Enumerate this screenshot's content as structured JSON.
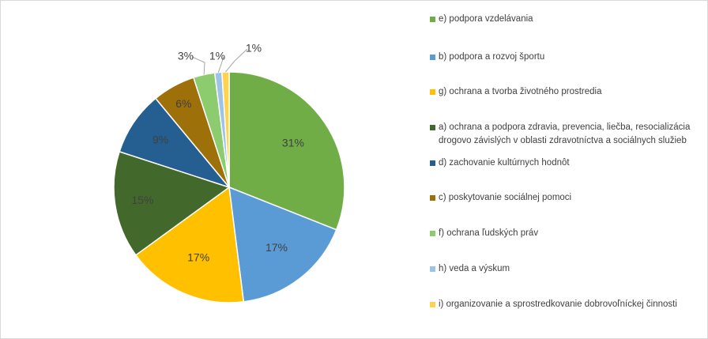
{
  "chart_data": {
    "type": "pie",
    "title": "",
    "legend_position": "right",
    "slices": [
      {
        "label": "e) podpora vzdelávania",
        "value": 31,
        "display": "31%",
        "color": "#70ad47"
      },
      {
        "label": "b) podpora a rozvoj športu",
        "value": 17,
        "display": "17%",
        "color": "#5b9bd5"
      },
      {
        "label": "g) ochrana a tvorba životného prostredia",
        "value": 17,
        "display": "17%",
        "color": "#ffc000"
      },
      {
        "label": "a) ochrana a podpora zdravia, prevencia, liečba, resocializácia drogovo závislých v oblasti zdravotníctva a sociálnych služieb",
        "value": 15,
        "display": "15%",
        "color": "#43682b"
      },
      {
        "label": "d) zachovanie kultúrnych hodnôt",
        "value": 9,
        "display": "9%",
        "color": "#255e91"
      },
      {
        "label": "c) poskytovanie sociálnej pomoci",
        "value": 6,
        "display": "6%",
        "color": "#9e7009"
      },
      {
        "label": "f) ochrana ľudských práv",
        "value": 3,
        "display": "3%",
        "color": "#8ccc6f"
      },
      {
        "label": "h) veda a výskum",
        "value": 1,
        "display": "1%",
        "color": "#9dc3e6"
      },
      {
        "label": "i) organizovanie a sprostredkovanie dobrovoľníckej činnosti",
        "value": 1,
        "display": "1%",
        "color": "#ffd34d"
      }
    ]
  }
}
